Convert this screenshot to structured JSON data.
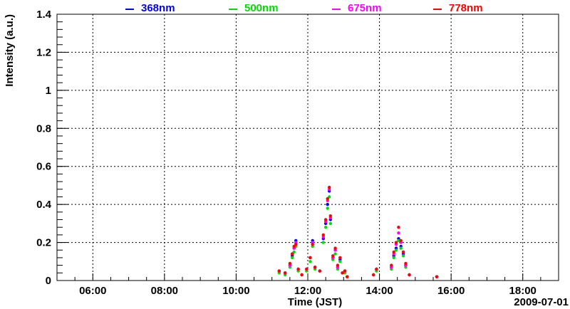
{
  "chart_data": {
    "type": "scatter",
    "xlabel": "Time (JST)",
    "ylabel": "Intensity (a.u.)",
    "date_label": "2009-07-01",
    "x_range": [
      "05:00",
      "19:00"
    ],
    "ylim": [
      0,
      1.4
    ],
    "x_ticks": [
      "06:00",
      "08:00",
      "10:00",
      "12:00",
      "14:00",
      "16:00",
      "18:00"
    ],
    "y_ticks": [
      "0",
      "0.2",
      "0.4",
      "0.6",
      "0.8",
      "1",
      "1.2",
      "1.4"
    ],
    "grid": true,
    "legend_position": "top",
    "series": [
      {
        "name": "368nm",
        "color": "#0000ff",
        "points": [
          [
            "11:12",
            0.05
          ],
          [
            "11:22",
            0.04
          ],
          [
            "11:30",
            0.08
          ],
          [
            "11:34",
            0.13
          ],
          [
            "11:37",
            0.17
          ],
          [
            "11:40",
            0.21
          ],
          [
            "11:44",
            0.06
          ],
          [
            "11:50",
            0.03
          ],
          [
            "11:58",
            0.06
          ],
          [
            "12:04",
            0.12
          ],
          [
            "12:08",
            0.21
          ],
          [
            "12:12",
            0.07
          ],
          [
            "12:20",
            0.05
          ],
          [
            "12:26",
            0.22
          ],
          [
            "12:30",
            0.3
          ],
          [
            "12:33",
            0.4
          ],
          [
            "12:36",
            0.47
          ],
          [
            "12:38",
            0.32
          ],
          [
            "12:42",
            0.12
          ],
          [
            "12:46",
            0.16
          ],
          [
            "12:50",
            0.07
          ],
          [
            "12:54",
            0.11
          ],
          [
            "12:58",
            0.04
          ],
          [
            "13:02",
            0.05
          ],
          [
            "13:06",
            0.02
          ],
          [
            "13:50",
            0.03
          ],
          [
            "13:55",
            0.06
          ],
          [
            "14:20",
            0.07
          ],
          [
            "14:24",
            0.13
          ],
          [
            "14:28",
            0.17
          ],
          [
            "14:32",
            0.22
          ],
          [
            "14:36",
            0.18
          ],
          [
            "14:40",
            0.14
          ],
          [
            "14:44",
            0.08
          ],
          [
            "14:50",
            0.03
          ],
          [
            "15:36",
            0.02
          ]
        ]
      },
      {
        "name": "500nm",
        "color": "#00dd00",
        "points": [
          [
            "11:12",
            0.04
          ],
          [
            "11:22",
            0.03
          ],
          [
            "11:30",
            0.07
          ],
          [
            "11:34",
            0.12
          ],
          [
            "11:37",
            0.15
          ],
          [
            "11:40",
            0.18
          ],
          [
            "11:44",
            0.05
          ],
          [
            "11:50",
            0.03
          ],
          [
            "11:58",
            0.05
          ],
          [
            "12:04",
            0.1
          ],
          [
            "12:08",
            0.18
          ],
          [
            "12:12",
            0.06
          ],
          [
            "12:20",
            0.05
          ],
          [
            "12:26",
            0.2
          ],
          [
            "12:30",
            0.28
          ],
          [
            "12:33",
            0.38
          ],
          [
            "12:36",
            0.44
          ],
          [
            "12:38",
            0.3
          ],
          [
            "12:42",
            0.11
          ],
          [
            "12:46",
            0.14
          ],
          [
            "12:50",
            0.06
          ],
          [
            "12:54",
            0.1
          ],
          [
            "12:58",
            0.04
          ],
          [
            "13:02",
            0.04
          ],
          [
            "13:06",
            0.02
          ],
          [
            "13:50",
            0.03
          ],
          [
            "13:55",
            0.05
          ],
          [
            "14:20",
            0.06
          ],
          [
            "14:24",
            0.12
          ],
          [
            "14:28",
            0.16
          ],
          [
            "14:32",
            0.21
          ],
          [
            "14:36",
            0.17
          ],
          [
            "14:40",
            0.13
          ],
          [
            "14:44",
            0.07
          ],
          [
            "14:50",
            0.03
          ],
          [
            "15:36",
            0.02
          ]
        ]
      },
      {
        "name": "675nm",
        "color": "#ff00ff",
        "points": [
          [
            "11:12",
            0.05
          ],
          [
            "11:22",
            0.04
          ],
          [
            "11:30",
            0.08
          ],
          [
            "11:34",
            0.14
          ],
          [
            "11:37",
            0.17
          ],
          [
            "11:40",
            0.2
          ],
          [
            "11:44",
            0.06
          ],
          [
            "11:50",
            0.03
          ],
          [
            "11:58",
            0.06
          ],
          [
            "12:04",
            0.12
          ],
          [
            "12:08",
            0.2
          ],
          [
            "12:12",
            0.07
          ],
          [
            "12:20",
            0.05
          ],
          [
            "12:26",
            0.23
          ],
          [
            "12:30",
            0.31
          ],
          [
            "12:33",
            0.42
          ],
          [
            "12:36",
            0.48
          ],
          [
            "12:38",
            0.33
          ],
          [
            "12:42",
            0.12
          ],
          [
            "12:46",
            0.16
          ],
          [
            "12:50",
            0.07
          ],
          [
            "12:54",
            0.12
          ],
          [
            "12:58",
            0.04
          ],
          [
            "13:02",
            0.05
          ],
          [
            "13:06",
            0.02
          ],
          [
            "13:50",
            0.03
          ],
          [
            "13:55",
            0.06
          ],
          [
            "14:20",
            0.07
          ],
          [
            "14:24",
            0.14
          ],
          [
            "14:28",
            0.19
          ],
          [
            "14:32",
            0.25
          ],
          [
            "14:36",
            0.2
          ],
          [
            "14:40",
            0.15
          ],
          [
            "14:44",
            0.08
          ],
          [
            "14:50",
            0.03
          ],
          [
            "15:36",
            0.02
          ]
        ]
      },
      {
        "name": "778nm",
        "color": "#ff0000",
        "points": [
          [
            "11:12",
            0.05
          ],
          [
            "11:22",
            0.04
          ],
          [
            "11:30",
            0.09
          ],
          [
            "11:34",
            0.14
          ],
          [
            "11:37",
            0.18
          ],
          [
            "11:40",
            0.19
          ],
          [
            "11:44",
            0.06
          ],
          [
            "11:50",
            0.03
          ],
          [
            "11:58",
            0.06
          ],
          [
            "12:04",
            0.12
          ],
          [
            "12:08",
            0.19
          ],
          [
            "12:12",
            0.07
          ],
          [
            "12:20",
            0.05
          ],
          [
            "12:26",
            0.24
          ],
          [
            "12:30",
            0.32
          ],
          [
            "12:33",
            0.43
          ],
          [
            "12:36",
            0.49
          ],
          [
            "12:38",
            0.34
          ],
          [
            "12:42",
            0.13
          ],
          [
            "12:46",
            0.17
          ],
          [
            "12:50",
            0.08
          ],
          [
            "12:54",
            0.12
          ],
          [
            "12:58",
            0.04
          ],
          [
            "13:02",
            0.05
          ],
          [
            "13:06",
            0.02
          ],
          [
            "13:50",
            0.03
          ],
          [
            "13:55",
            0.06
          ],
          [
            "14:20",
            0.08
          ],
          [
            "14:24",
            0.15
          ],
          [
            "14:28",
            0.2
          ],
          [
            "14:32",
            0.28
          ],
          [
            "14:36",
            0.21
          ],
          [
            "14:40",
            0.15
          ],
          [
            "14:44",
            0.09
          ],
          [
            "14:50",
            0.03
          ],
          [
            "15:36",
            0.02
          ]
        ]
      }
    ]
  }
}
